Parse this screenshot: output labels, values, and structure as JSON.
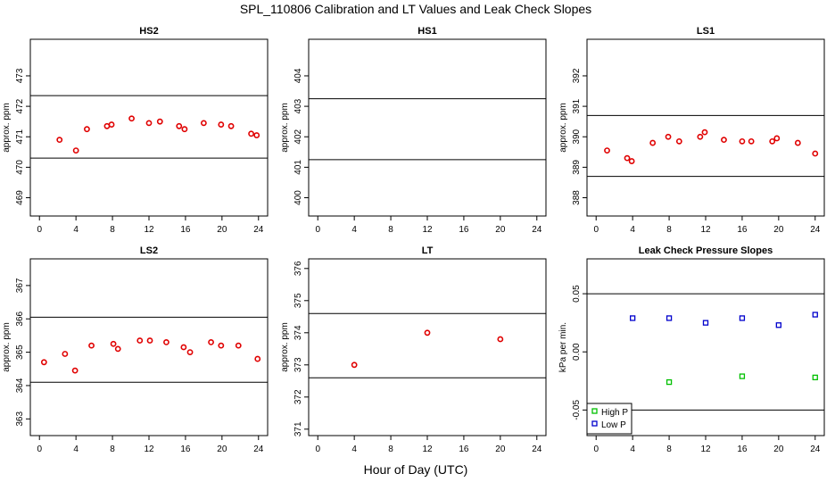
{
  "figure": {
    "title": "SPL_110806  Calibration and LT Values and Leak Check Slopes",
    "xlabel": "Hour of Day (UTC)"
  },
  "chart_data": [
    {
      "type": "scatter",
      "title": "HS2",
      "xlabel": "",
      "ylabel": "approx. ppm",
      "xlim": [
        -1,
        25
      ],
      "ylim": [
        468.4,
        474.2
      ],
      "xticks": [
        "0",
        "4",
        "8",
        "12",
        "16",
        "20",
        "24"
      ],
      "yticks": [
        "469",
        "470",
        "471",
        "472",
        "473"
      ],
      "hlines": [
        472.35,
        470.3
      ],
      "grid": false,
      "series": [
        {
          "color": "#e00000",
          "marker": "circle",
          "x": [
            2.2,
            4.0,
            5.2,
            7.4,
            7.9,
            10.1,
            12.0,
            13.2,
            15.3,
            15.9,
            18.0,
            19.9,
            21.0,
            23.2,
            23.8
          ],
          "y": [
            470.9,
            470.55,
            471.25,
            471.35,
            471.4,
            471.6,
            471.45,
            471.5,
            471.35,
            471.25,
            471.45,
            471.4,
            471.35,
            471.1,
            471.05
          ]
        }
      ]
    },
    {
      "type": "scatter",
      "title": "HS1",
      "xlabel": "",
      "ylabel": "approx. ppm",
      "xlim": [
        -1,
        25
      ],
      "ylim": [
        399.4,
        405.2
      ],
      "xticks": [
        "0",
        "4",
        "8",
        "12",
        "16",
        "20",
        "24"
      ],
      "yticks": [
        "400",
        "401",
        "402",
        "403",
        "404"
      ],
      "hlines": [
        403.25,
        401.25
      ],
      "grid": false,
      "series": []
    },
    {
      "type": "scatter",
      "title": "LS1",
      "xlabel": "",
      "ylabel": "approx. ppm",
      "xlim": [
        -1,
        25
      ],
      "ylim": [
        387.4,
        393.2
      ],
      "xticks": [
        "0",
        "4",
        "8",
        "12",
        "16",
        "20",
        "24"
      ],
      "yticks": [
        "388",
        "389",
        "390",
        "391",
        "392"
      ],
      "hlines": [
        390.7,
        388.7
      ],
      "grid": false,
      "series": [
        {
          "color": "#e00000",
          "marker": "circle",
          "x": [
            1.2,
            3.4,
            3.9,
            6.2,
            7.9,
            9.1,
            11.4,
            11.9,
            14.0,
            16.0,
            17.0,
            19.3,
            19.8,
            22.1,
            24.0
          ],
          "y": [
            389.55,
            389.3,
            389.2,
            389.8,
            390.0,
            389.85,
            390.0,
            390.15,
            389.9,
            389.85,
            389.85,
            389.85,
            389.95,
            389.8,
            389.45
          ]
        }
      ]
    },
    {
      "type": "scatter",
      "title": "LS2",
      "xlabel": "",
      "ylabel": "approx. ppm",
      "xlim": [
        -1,
        25
      ],
      "ylim": [
        362.5,
        367.8
      ],
      "xticks": [
        "0",
        "4",
        "8",
        "12",
        "16",
        "20",
        "24"
      ],
      "yticks": [
        "363",
        "364",
        "365",
        "366",
        "367"
      ],
      "hlines": [
        366.05,
        364.1
      ],
      "grid": false,
      "series": [
        {
          "color": "#e00000",
          "marker": "circle",
          "x": [
            0.5,
            2.8,
            3.9,
            5.7,
            8.1,
            8.6,
            11.0,
            12.1,
            13.9,
            15.8,
            16.5,
            18.8,
            19.9,
            21.8,
            23.9
          ],
          "y": [
            364.7,
            364.95,
            364.45,
            365.2,
            365.25,
            365.1,
            365.35,
            365.35,
            365.3,
            365.15,
            365.0,
            365.3,
            365.2,
            365.2,
            364.8
          ]
        }
      ]
    },
    {
      "type": "scatter",
      "title": "LT",
      "xlabel": "",
      "ylabel": "approx. ppm",
      "xlim": [
        -1,
        25
      ],
      "ylim": [
        370.8,
        376.3
      ],
      "xticks": [
        "0",
        "4",
        "8",
        "12",
        "16",
        "20",
        "24"
      ],
      "yticks": [
        "371",
        "372",
        "373",
        "374",
        "375",
        "376"
      ],
      "hlines": [
        374.6,
        372.6
      ],
      "grid": false,
      "series": [
        {
          "color": "#e00000",
          "marker": "circle",
          "x": [
            4.0,
            12.0,
            20.0
          ],
          "y": [
            373.0,
            374.0,
            373.8
          ]
        }
      ]
    },
    {
      "type": "scatter",
      "title": "Leak Check Pressure Slopes",
      "xlabel": "",
      "ylabel": "kPa per min.",
      "xlim": [
        -1,
        25
      ],
      "ylim": [
        -0.072,
        0.08
      ],
      "xticks": [
        "0",
        "4",
        "8",
        "12",
        "16",
        "20",
        "24"
      ],
      "yticks": [
        "-0.05",
        "0.00",
        "0.05"
      ],
      "hlines": [
        0.05,
        -0.05
      ],
      "grid": false,
      "legend": {
        "position": "bottom-left"
      },
      "series": [
        {
          "name": "High P",
          "color": "#00c000",
          "marker": "square",
          "x": [
            8.0,
            16.0,
            24.0
          ],
          "y": [
            -0.026,
            -0.021,
            -0.022
          ]
        },
        {
          "name": "Low P",
          "color": "#0000cc",
          "marker": "square",
          "x": [
            4.0,
            8.0,
            12.0,
            16.0,
            20.0,
            24.0
          ],
          "y": [
            0.029,
            0.029,
            0.025,
            0.029,
            0.023,
            0.032
          ]
        }
      ]
    }
  ]
}
